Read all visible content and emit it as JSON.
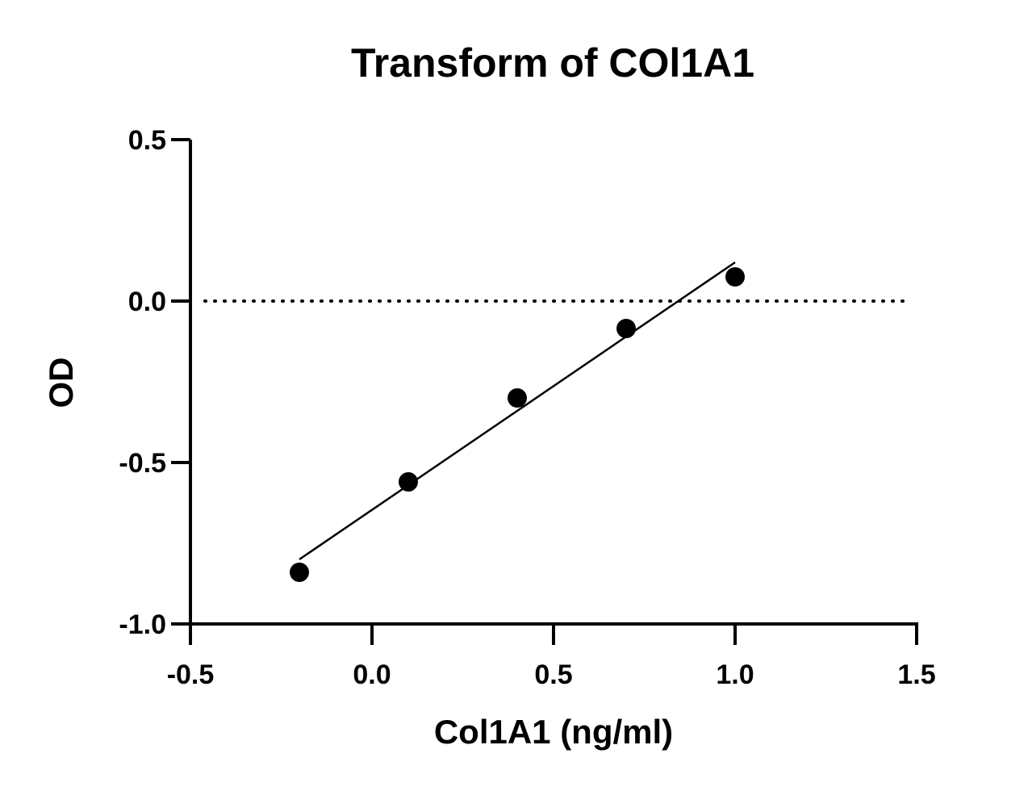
{
  "chart_data": {
    "type": "scatter",
    "title": "Transform of COl1A1",
    "xlabel": "Col1A1 (ng/ml)",
    "ylabel": "OD",
    "xlim": [
      -0.5,
      1.5
    ],
    "ylim": [
      -1.0,
      0.5
    ],
    "x_ticks": [
      -0.5,
      0.0,
      0.5,
      1.0,
      1.5
    ],
    "x_tick_labels": [
      "-0.5",
      "0.0",
      "0.5",
      "1.0",
      "1.5"
    ],
    "y_ticks": [
      -1.0,
      -0.5,
      0.0,
      0.5
    ],
    "y_tick_labels": [
      "-1.0",
      "-0.5",
      "0.0",
      "0.5"
    ],
    "grid": false,
    "legend": "none",
    "points": [
      {
        "x": -0.2,
        "y": -0.84
      },
      {
        "x": 0.1,
        "y": -0.56
      },
      {
        "x": 0.4,
        "y": -0.3
      },
      {
        "x": 0.7,
        "y": -0.085
      },
      {
        "x": 1.0,
        "y": 0.075
      }
    ],
    "fit_line": {
      "x": [
        -0.2,
        1.0
      ],
      "y": [
        -0.8,
        0.12
      ]
    },
    "reference_line": {
      "y": 0.0,
      "style": "dotted"
    },
    "colors": {
      "points": "#000000",
      "line": "#000000",
      "axes": "#000000"
    }
  }
}
